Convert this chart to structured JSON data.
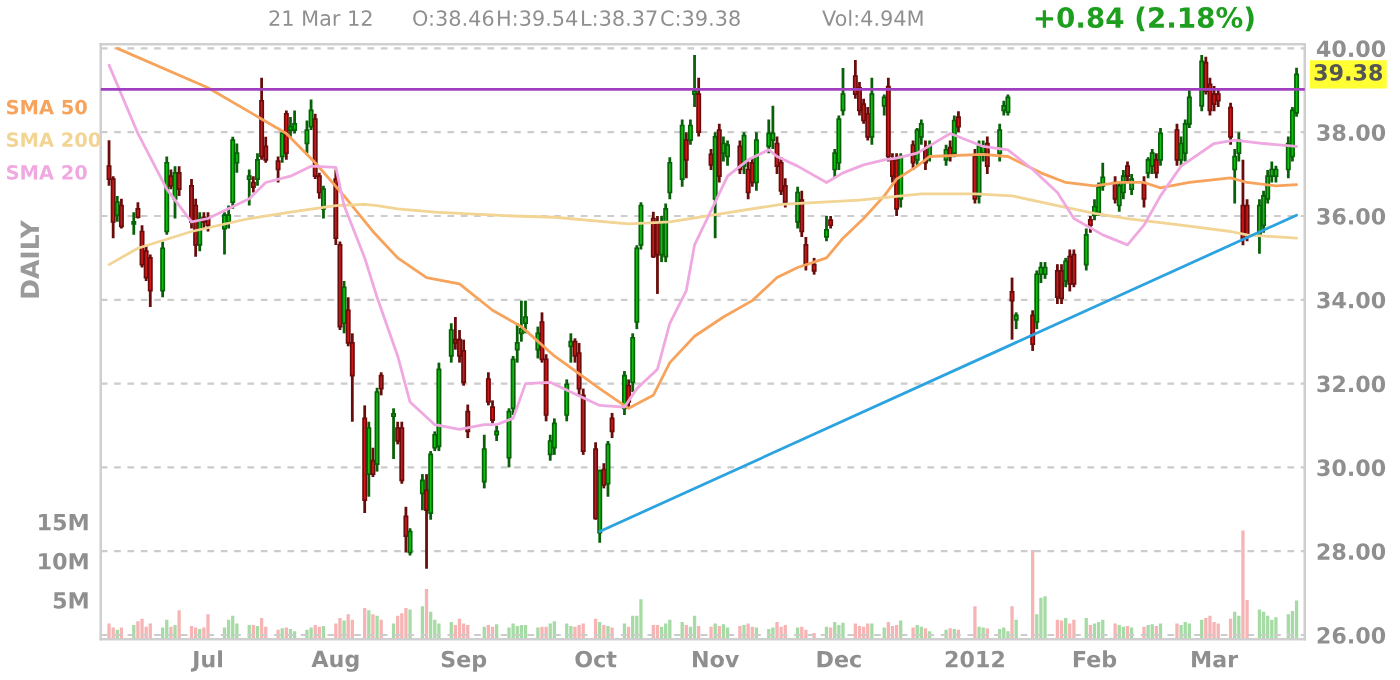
{
  "chart_data": {
    "type": "candlestick",
    "x": [
      "2011-06-07",
      "2011-06-08",
      "2011-06-09",
      "2011-06-10",
      "2011-06-13",
      "2011-06-14",
      "2011-06-15",
      "2011-06-16",
      "2011-06-17",
      "2011-06-20",
      "2011-06-21",
      "2011-06-22",
      "2011-06-23",
      "2011-06-24",
      "2011-06-27",
      "2011-06-28",
      "2011-06-29",
      "2011-06-30",
      "2011-07-01",
      "2011-07-05",
      "2011-07-06",
      "2011-07-07",
      "2011-07-08",
      "2011-07-11",
      "2011-07-12",
      "2011-07-13",
      "2011-07-14",
      "2011-07-15",
      "2011-07-18",
      "2011-07-19",
      "2011-07-20",
      "2011-07-21",
      "2011-07-22",
      "2011-07-25",
      "2011-07-26",
      "2011-07-27",
      "2011-07-28",
      "2011-07-29",
      "2011-08-01",
      "2011-08-02",
      "2011-08-03",
      "2011-08-04",
      "2011-08-05",
      "2011-08-08",
      "2011-08-09",
      "2011-08-10",
      "2011-08-11",
      "2011-08-12",
      "2011-08-15",
      "2011-08-16",
      "2011-08-17",
      "2011-08-18",
      "2011-08-19",
      "2011-08-22",
      "2011-08-23",
      "2011-08-24",
      "2011-08-25",
      "2011-08-26",
      "2011-08-29",
      "2011-08-30",
      "2011-08-31",
      "2011-09-01",
      "2011-09-02",
      "2011-09-06",
      "2011-09-07",
      "2011-09-08",
      "2011-09-09",
      "2011-09-12",
      "2011-09-13",
      "2011-09-14",
      "2011-09-15",
      "2011-09-16",
      "2011-09-19",
      "2011-09-20",
      "2011-09-21",
      "2011-09-22",
      "2011-09-23",
      "2011-09-26",
      "2011-09-27",
      "2011-09-28",
      "2011-09-29",
      "2011-09-30",
      "2011-10-03",
      "2011-10-04",
      "2011-10-05",
      "2011-10-06",
      "2011-10-07",
      "2011-10-10",
      "2011-10-11",
      "2011-10-12",
      "2011-10-13",
      "2011-10-14",
      "2011-10-17",
      "2011-10-18",
      "2011-10-19",
      "2011-10-20",
      "2011-10-21",
      "2011-10-24",
      "2011-10-25",
      "2011-10-26",
      "2011-10-27",
      "2011-10-28",
      "2011-10-31",
      "2011-11-01",
      "2011-11-02",
      "2011-11-03",
      "2011-11-04",
      "2011-11-07",
      "2011-11-08",
      "2011-11-09",
      "2011-11-10",
      "2011-11-11",
      "2011-11-14",
      "2011-11-15",
      "2011-11-16",
      "2011-11-17",
      "2011-11-18",
      "2011-11-21",
      "2011-11-22",
      "2011-11-23",
      "2011-11-25",
      "2011-11-28",
      "2011-11-29",
      "2011-11-30",
      "2011-12-01",
      "2011-12-02",
      "2011-12-05",
      "2011-12-06",
      "2011-12-07",
      "2011-12-08",
      "2011-12-09",
      "2011-12-12",
      "2011-12-13",
      "2011-12-14",
      "2011-12-15",
      "2011-12-16",
      "2011-12-19",
      "2011-12-20",
      "2011-12-21",
      "2011-12-22",
      "2011-12-23",
      "2011-12-27",
      "2011-12-28",
      "2011-12-29",
      "2011-12-30",
      "2012-01-03",
      "2012-01-04",
      "2012-01-05",
      "2012-01-06",
      "2012-01-09",
      "2012-01-10",
      "2012-01-11",
      "2012-01-12",
      "2012-01-13",
      "2012-01-17",
      "2012-01-18",
      "2012-01-19",
      "2012-01-20",
      "2012-01-23",
      "2012-01-24",
      "2012-01-25",
      "2012-01-26",
      "2012-01-27",
      "2012-01-30",
      "2012-01-31",
      "2012-02-01",
      "2012-02-02",
      "2012-02-03",
      "2012-02-06",
      "2012-02-07",
      "2012-02-08",
      "2012-02-09",
      "2012-02-10",
      "2012-02-13",
      "2012-02-14",
      "2012-02-15",
      "2012-02-16",
      "2012-02-17",
      "2012-02-21",
      "2012-02-22",
      "2012-02-23",
      "2012-02-24",
      "2012-02-27",
      "2012-02-28",
      "2012-02-29",
      "2012-03-01",
      "2012-03-02",
      "2012-03-05",
      "2012-03-06",
      "2012-03-07",
      "2012-03-08",
      "2012-03-09",
      "2012-03-12",
      "2012-03-13",
      "2012-03-14",
      "2012-03-15",
      "2012-03-16",
      "2012-03-19",
      "2012-03-20",
      "2012-03-21"
    ],
    "ohlc": [
      [
        37.19,
        37.81,
        36.72,
        36.88
      ],
      [
        36.88,
        36.95,
        35.47,
        35.86
      ],
      [
        36.02,
        36.48,
        35.86,
        36.33
      ],
      [
        36.25,
        36.41,
        35.7,
        35.75
      ],
      [
        35.81,
        36.09,
        35.55,
        35.86
      ],
      [
        36.17,
        36.33,
        35.94,
        35.97
      ],
      [
        35.63,
        35.78,
        34.77,
        34.84
      ],
      [
        35.16,
        35.3,
        34.45,
        34.53
      ],
      [
        35.0,
        35.08,
        33.83,
        34.22
      ],
      [
        34.22,
        35.39,
        34.06,
        35.23
      ],
      [
        35.63,
        37.42,
        35.55,
        37.27
      ],
      [
        36.95,
        37.11,
        36.64,
        36.72
      ],
      [
        36.41,
        37.19,
        35.94,
        37.03
      ],
      [
        37.03,
        37.19,
        36.48,
        36.64
      ],
      [
        36.72,
        36.88,
        35.7,
        35.86
      ],
      [
        36.25,
        36.41,
        35.03,
        35.31
      ],
      [
        35.31,
        36.09,
        35.16,
        35.94
      ],
      [
        35.97,
        36.09,
        35.7,
        35.86
      ],
      [
        35.94,
        36.09,
        35.63,
        35.78
      ],
      [
        35.7,
        36.09,
        35.08,
        36.02
      ],
      [
        35.86,
        36.25,
        35.7,
        36.02
      ],
      [
        36.33,
        37.89,
        36.17,
        37.81
      ],
      [
        37.27,
        37.73,
        37.03,
        37.5
      ],
      [
        36.88,
        37.11,
        36.25,
        36.95
      ],
      [
        36.8,
        36.95,
        36.56,
        36.69
      ],
      [
        36.88,
        37.5,
        36.72,
        37.34
      ],
      [
        38.75,
        39.3,
        37.34,
        37.42
      ],
      [
        37.66,
        37.89,
        37.27,
        37.34
      ],
      [
        37.31,
        37.42,
        36.8,
        37.11
      ],
      [
        37.42,
        38.05,
        37.27,
        37.97
      ],
      [
        38.44,
        38.52,
        37.34,
        37.5
      ],
      [
        38.05,
        38.36,
        37.89,
        38.13
      ],
      [
        38.05,
        38.52,
        37.97,
        38.2
      ],
      [
        37.73,
        38.28,
        37.5,
        38.05
      ],
      [
        38.13,
        38.78,
        38.05,
        38.52
      ],
      [
        38.31,
        38.44,
        36.88,
        36.95
      ],
      [
        36.95,
        37.03,
        36.41,
        36.56
      ],
      [
        36.17,
        36.72,
        35.94,
        36.64
      ],
      [
        36.88,
        37.11,
        35.31,
        35.47
      ],
      [
        35.31,
        35.39,
        33.28,
        33.36
      ],
      [
        33.44,
        34.45,
        33.2,
        34.3
      ],
      [
        33.75,
        34.06,
        32.89,
        32.97
      ],
      [
        32.97,
        33.2,
        31.09,
        32.19
      ],
      [
        31.17,
        31.48,
        28.91,
        29.22
      ],
      [
        29.84,
        31.09,
        29.3,
        30.94
      ],
      [
        30.16,
        30.47,
        29.77,
        29.84
      ],
      [
        30.08,
        31.9,
        29.9,
        31.8
      ],
      [
        32.19,
        32.27,
        31.72,
        31.88
      ],
      [
        31.22,
        31.41,
        30.2,
        31.28
      ],
      [
        30.94,
        31.09,
        30.55,
        30.63
      ],
      [
        30.94,
        31.09,
        29.61,
        29.69
      ],
      [
        28.83,
        29.06,
        27.97,
        28.36
      ],
      [
        27.97,
        28.55,
        27.9,
        28.47
      ],
      [
        29.38,
        29.84,
        28.98,
        29.69
      ],
      [
        29.45,
        29.84,
        27.58,
        28.98
      ],
      [
        28.91,
        30.39,
        28.75,
        30.31
      ],
      [
        30.47,
        30.86,
        30.39,
        30.78
      ],
      [
        30.5,
        32.5,
        30.39,
        32.34
      ],
      [
        32.66,
        33.44,
        32.5,
        33.28
      ],
      [
        33.05,
        33.59,
        32.81,
        32.97
      ],
      [
        33.05,
        33.28,
        32.5,
        32.66
      ],
      [
        32.78,
        33.05,
        31.95,
        32.03
      ],
      [
        31.33,
        31.5,
        30.7,
        30.86
      ],
      [
        29.66,
        30.78,
        29.5,
        30.44
      ],
      [
        32.11,
        32.27,
        31.48,
        31.56
      ],
      [
        31.44,
        31.6,
        31.05,
        31.13
      ],
      [
        30.78,
        31.0,
        30.63,
        30.86
      ],
      [
        30.23,
        31.41,
        30.0,
        31.33
      ],
      [
        31.41,
        32.66,
        31.25,
        32.58
      ],
      [
        32.81,
        33.44,
        32.5,
        32.97
      ],
      [
        33.2,
        33.98,
        33.0,
        33.31
      ],
      [
        33.44,
        33.98,
        33.2,
        33.59
      ],
      [
        32.81,
        33.36,
        32.6,
        33.2
      ],
      [
        33.47,
        33.7,
        32.5,
        32.58
      ],
      [
        32.58,
        32.7,
        31.1,
        31.25
      ],
      [
        30.31,
        30.78,
        30.16,
        30.63
      ],
      [
        30.47,
        31.17,
        30.3,
        31.05
      ],
      [
        31.25,
        32.1,
        31.1,
        31.98
      ],
      [
        32.89,
        33.2,
        32.5,
        33.0
      ],
      [
        33.0,
        33.08,
        32.5,
        32.66
      ],
      [
        32.73,
        32.97,
        31.72,
        31.88
      ],
      [
        31.72,
        31.88,
        30.3,
        30.39
      ],
      [
        30.44,
        30.6,
        28.75,
        28.78
      ],
      [
        28.44,
        29.95,
        28.2,
        29.92
      ],
      [
        29.95,
        30.1,
        29.5,
        29.58
      ],
      [
        29.61,
        30.63,
        29.3,
        30.55
      ],
      [
        31.17,
        31.3,
        30.7,
        30.86
      ],
      [
        31.41,
        32.3,
        31.25,
        32.19
      ],
      [
        31.95,
        32.1,
        31.4,
        31.56
      ],
      [
        32.03,
        33.2,
        31.8,
        33.09
      ],
      [
        33.47,
        35.3,
        33.3,
        35.23
      ],
      [
        35.31,
        36.33,
        35.2,
        36.25
      ],
      [
        35.94,
        36.1,
        35.0,
        35.03
      ],
      [
        35.86,
        36.0,
        34.14,
        35.08
      ],
      [
        35.08,
        36.0,
        34.9,
        35.86
      ],
      [
        35.03,
        36.3,
        34.9,
        36.17
      ],
      [
        36.56,
        37.4,
        36.4,
        37.27
      ],
      [
        36.88,
        38.3,
        36.7,
        38.16
      ],
      [
        37.81,
        38.0,
        36.9,
        37.34
      ],
      [
        37.81,
        38.3,
        37.7,
        38.16
      ],
      [
        38.91,
        39.84,
        38.6,
        38.98
      ],
      [
        38.91,
        39.3,
        37.9,
        38.0
      ],
      [
        37.47,
        37.6,
        37.1,
        37.22
      ],
      [
        36.41,
        38.0,
        35.47,
        37.89
      ],
      [
        38.05,
        38.2,
        36.8,
        36.95
      ],
      [
        37.5,
        37.9,
        37.3,
        37.73
      ],
      [
        37.42,
        37.8,
        37.2,
        37.69
      ],
      [
        37.66,
        37.8,
        37.0,
        37.11
      ],
      [
        37.19,
        38.0,
        37.0,
        37.92
      ],
      [
        37.11,
        37.3,
        36.4,
        36.56
      ],
      [
        37.27,
        37.4,
        36.7,
        36.8
      ],
      [
        36.8,
        38.0,
        36.6,
        37.81
      ],
      [
        37.66,
        38.3,
        37.5,
        37.97
      ],
      [
        37.81,
        38.63,
        37.6,
        37.97
      ],
      [
        37.73,
        37.9,
        37.0,
        37.19
      ],
      [
        37.27,
        37.4,
        36.5,
        36.6
      ],
      [
        36.72,
        36.9,
        36.2,
        36.33
      ],
      [
        35.86,
        36.7,
        35.7,
        36.56
      ],
      [
        36.38,
        36.6,
        35.5,
        35.63
      ],
      [
        35.31,
        35.5,
        34.7,
        34.84
      ],
      [
        34.84,
        35.0,
        34.6,
        34.69
      ],
      [
        35.5,
        36.0,
        35.4,
        35.67
      ],
      [
        35.9,
        36.0,
        35.7,
        35.78
      ],
      [
        37.11,
        37.6,
        36.9,
        37.5
      ],
      [
        37.27,
        38.4,
        37.1,
        38.31
      ],
      [
        38.52,
        39.53,
        38.4,
        38.91
      ],
      [
        39.34,
        39.72,
        38.8,
        38.91
      ],
      [
        39.06,
        39.2,
        38.4,
        38.52
      ],
      [
        38.67,
        38.8,
        38.2,
        38.28
      ],
      [
        38.44,
        38.6,
        37.8,
        37.89
      ],
      [
        37.89,
        39.3,
        37.7,
        38.91
      ],
      [
        38.63,
        38.9,
        38.4,
        38.83
      ],
      [
        39.09,
        39.3,
        37.3,
        37.42
      ],
      [
        37.34,
        37.5,
        36.8,
        36.95
      ],
      [
        37.34,
        37.5,
        36.0,
        36.17
      ],
      [
        36.41,
        37.5,
        36.2,
        37.42
      ],
      [
        37.69,
        37.8,
        37.1,
        37.27
      ],
      [
        37.34,
        38.1,
        37.2,
        38.05
      ],
      [
        37.89,
        38.3,
        37.7,
        38.2
      ],
      [
        37.58,
        37.8,
        37.1,
        37.27
      ],
      [
        37.42,
        37.8,
        37.3,
        37.66
      ],
      [
        37.34,
        37.7,
        37.2,
        37.58
      ],
      [
        37.63,
        37.8,
        37.3,
        37.42
      ],
      [
        37.5,
        38.4,
        37.4,
        38.28
      ],
      [
        38.36,
        38.5,
        38.0,
        38.13
      ],
      [
        37.42,
        37.6,
        36.3,
        36.41
      ],
      [
        36.48,
        37.8,
        36.3,
        37.66
      ],
      [
        37.5,
        37.8,
        37.3,
        37.66
      ],
      [
        37.73,
        37.9,
        37.0,
        37.19
      ],
      [
        37.5,
        38.2,
        37.3,
        38.05
      ],
      [
        38.52,
        38.75,
        38.4,
        38.63
      ],
      [
        38.48,
        38.9,
        38.4,
        38.83
      ],
      [
        34.19,
        34.53,
        33.05,
        33.98
      ],
      [
        33.52,
        33.7,
        33.3,
        33.63
      ],
      [
        33.63,
        33.75,
        32.78,
        32.94
      ],
      [
        33.47,
        34.7,
        33.3,
        34.61
      ],
      [
        34.61,
        34.9,
        34.4,
        34.77
      ],
      [
        34.61,
        34.9,
        34.5,
        34.77
      ],
      [
        34.69,
        34.85,
        33.9,
        34.06
      ],
      [
        34.69,
        34.85,
        33.9,
        34.03
      ],
      [
        34.45,
        35.0,
        34.3,
        34.92
      ],
      [
        35.03,
        35.2,
        34.2,
        34.38
      ],
      [
        35.08,
        35.2,
        34.3,
        34.38
      ],
      [
        34.84,
        35.7,
        34.7,
        35.55
      ],
      [
        35.91,
        36.0,
        35.6,
        35.78
      ],
      [
        36.02,
        36.4,
        35.9,
        36.22
      ],
      [
        36.09,
        36.8,
        36.0,
        36.69
      ],
      [
        36.72,
        37.27,
        36.6,
        36.92
      ],
      [
        36.8,
        36.95,
        36.3,
        36.41
      ],
      [
        36.25,
        36.8,
        36.1,
        36.72
      ],
      [
        36.56,
        37.1,
        36.4,
        36.95
      ],
      [
        37.19,
        37.3,
        36.8,
        36.95
      ],
      [
        36.64,
        37.0,
        36.5,
        36.88
      ],
      [
        36.8,
        36.95,
        36.2,
        36.41
      ],
      [
        37.03,
        37.4,
        36.9,
        37.34
      ],
      [
        37.19,
        37.6,
        37.0,
        37.5
      ],
      [
        37.34,
        37.5,
        36.9,
        37.03
      ],
      [
        37.34,
        38.1,
        37.2,
        37.97
      ],
      [
        38.05,
        38.2,
        37.2,
        37.34
      ],
      [
        37.34,
        37.9,
        37.2,
        37.73
      ],
      [
        37.5,
        38.3,
        37.3,
        38.2
      ],
      [
        38.2,
        39.0,
        38.1,
        38.83
      ],
      [
        38.63,
        39.84,
        38.5,
        39.69
      ],
      [
        39.66,
        39.8,
        38.9,
        38.98
      ],
      [
        39.14,
        39.3,
        38.4,
        38.52
      ],
      [
        38.91,
        39.1,
        38.5,
        38.67
      ],
      [
        38.91,
        39.0,
        38.6,
        38.75
      ],
      [
        38.59,
        38.7,
        37.7,
        37.89
      ],
      [
        37.11,
        37.6,
        36.3,
        37.42
      ],
      [
        37.5,
        38.0,
        37.3,
        37.81
      ],
      [
        36.25,
        37.34,
        35.3,
        35.47
      ],
      [
        36.25,
        36.4,
        35.4,
        35.55
      ],
      [
        35.55,
        36.4,
        35.1,
        36.25
      ],
      [
        35.78,
        36.6,
        35.6,
        36.48
      ],
      [
        36.41,
        37.1,
        36.3,
        36.95
      ],
      [
        36.95,
        37.3,
        36.8,
        37.11
      ],
      [
        36.95,
        37.2,
        36.8,
        37.11
      ],
      [
        37.11,
        37.9,
        36.9,
        37.73
      ],
      [
        37.42,
        38.6,
        37.3,
        38.52
      ],
      [
        38.46,
        39.54,
        38.37,
        39.38
      ]
    ],
    "colors": [
      "#d01818",
      "#d01818",
      "#10c010",
      "#d01818",
      "#10c010",
      "#d01818",
      "#d01818",
      "#d01818",
      "#d01818",
      "#10c010",
      "#10c010",
      "#d01818",
      "#10c010",
      "#d01818",
      "#d01818",
      "#d01818",
      "#10c010",
      "#d01818",
      "#d01818",
      "#10c010",
      "#10c010",
      "#10c010",
      "#10c010",
      "#10c010",
      "#d01818",
      "#10c010",
      "#d01818",
      "#d01818",
      "#d01818",
      "#10c010",
      "#d01818",
      "#10c010",
      "#10c010",
      "#10c010",
      "#10c010",
      "#d01818",
      "#d01818",
      "#10c010",
      "#d01818",
      "#d01818",
      "#10c010",
      "#d01818",
      "#d01818",
      "#d01818",
      "#10c010",
      "#d01818",
      "#10c010",
      "#d01818",
      "#10c010",
      "#d01818",
      "#d01818",
      "#d01818",
      "#10c010",
      "#10c010",
      "#d01818",
      "#10c010",
      "#10c010",
      "#10c010",
      "#10c010",
      "#d01818",
      "#d01818",
      "#d01818",
      "#d01818",
      "#10c010",
      "#d01818",
      "#d01818",
      "#10c010",
      "#10c010",
      "#10c010",
      "#10c010",
      "#10c010",
      "#10c010",
      "#10c010",
      "#d01818",
      "#d01818",
      "#10c010",
      "#10c010",
      "#10c010",
      "#10c010",
      "#d01818",
      "#d01818",
      "#d01818",
      "#d01818",
      "#10c010",
      "#d01818",
      "#10c010",
      "#d01818",
      "#10c010",
      "#d01818",
      "#10c010",
      "#10c010",
      "#10c010",
      "#d01818",
      "#d01818",
      "#10c010",
      "#10c010",
      "#10c010",
      "#10c010",
      "#d01818",
      "#10c010",
      "#10c010",
      "#d01818",
      "#d01818",
      "#10c010",
      "#d01818",
      "#10c010",
      "#10c010",
      "#d01818",
      "#10c010",
      "#d01818",
      "#d01818",
      "#10c010",
      "#10c010",
      "#10c010",
      "#d01818",
      "#d01818",
      "#d01818",
      "#10c010",
      "#d01818",
      "#d01818",
      "#d01818",
      "#10c010",
      "#d01818",
      "#10c010",
      "#10c010",
      "#10c010",
      "#d01818",
      "#d01818",
      "#d01818",
      "#d01818",
      "#10c010",
      "#10c010",
      "#d01818",
      "#d01818",
      "#d01818",
      "#10c010",
      "#d01818",
      "#10c010",
      "#10c010",
      "#d01818",
      "#10c010",
      "#10c010",
      "#d01818",
      "#10c010",
      "#d01818",
      "#d01818",
      "#10c010",
      "#10c010",
      "#d01818",
      "#10c010",
      "#10c010",
      "#10c010",
      "#d01818",
      "#10c010",
      "#d01818",
      "#10c010",
      "#10c010",
      "#10c010",
      "#d01818",
      "#d01818",
      "#10c010",
      "#d01818",
      "#d01818",
      "#10c010",
      "#d01818",
      "#10c010",
      "#10c010",
      "#10c010",
      "#d01818",
      "#10c010",
      "#10c010",
      "#d01818",
      "#10c010",
      "#d01818",
      "#10c010",
      "#10c010",
      "#d01818",
      "#10c010",
      "#d01818",
      "#10c010",
      "#10c010",
      "#10c010",
      "#10c010",
      "#d01818",
      "#d01818",
      "#d01818",
      "#d01818",
      "#d01818",
      "#10c010",
      "#10c010",
      "#d01818",
      "#d01818",
      "#10c010",
      "#10c010",
      "#10c010",
      "#10c010",
      "#10c010",
      "#10c010",
      "#10c010",
      "#10c010"
    ],
    "series": [
      {
        "type": "bar",
        "axis": "y2",
        "values": [
          2.0,
          1.5,
          1.2,
          1.5,
          1.8,
          2.3,
          2.6,
          1.6,
          2.0,
          1.5,
          2.5,
          1.6,
          1.8,
          3.7,
          1.7,
          1.5,
          1.3,
          1.5,
          3.2,
          1.5,
          2.5,
          3.0,
          2.0,
          1.8,
          1.8,
          1.7,
          2.7,
          1.6,
          1.2,
          1.4,
          1.5,
          1.3,
          1.0,
          1.2,
          1.5,
          1.8,
          1.6,
          1.7,
          2.0,
          2.7,
          2.4,
          3.2,
          2.5,
          4.0,
          3.7,
          3.2,
          3.0,
          2.5,
          2.0,
          3.0,
          3.3,
          4.0,
          3.8,
          4.2,
          6.4,
          3.5,
          2.5,
          2.0,
          2.2,
          1.8,
          2.6,
          2.0,
          1.8,
          1.6,
          1.8,
          1.6,
          1.9,
          1.5,
          2.0,
          1.7,
          1.8,
          1.8,
          1.5,
          1.6,
          1.6,
          2.0,
          2.3,
          2.0,
          1.7,
          1.6,
          1.8,
          2.0,
          2.6,
          2.2,
          1.8,
          1.7,
          1.5,
          2.0,
          1.6,
          3.0,
          3.0,
          5.1,
          1.8,
          1.8,
          1.6,
          2.0,
          2.5,
          2.2,
          1.8,
          1.6,
          3.0,
          1.7,
          1.6,
          2.0,
          1.7,
          1.9,
          1.5,
          1.7,
          1.8,
          2.0,
          1.6,
          1.5,
          1.3,
          1.5,
          2.2,
          1.6,
          1.8,
          1.5,
          1.6,
          1.2,
          0.8,
          1.6,
          1.5,
          2.2,
          1.8,
          2.1,
          2.0,
          1.7,
          1.6,
          2.0,
          2.0,
          1.5,
          2.2,
          1.7,
          1.8,
          2.4,
          1.5,
          1.8,
          1.6,
          1.4,
          1.0,
          1.2,
          1.4,
          1.3,
          1.2,
          4.2,
          1.6,
          1.5,
          1.4,
          1.3,
          1.5,
          1.0,
          4.2,
          2.5,
          11.4,
          3.2,
          5.3,
          5.5,
          2.5,
          2.4,
          2.7,
          2.0,
          2.5,
          2.7,
          1.8,
          2.0,
          2.2,
          2.5,
          2.0,
          1.8,
          1.6,
          1.7,
          1.5,
          1.6,
          1.8,
          1.9,
          1.7,
          2.0,
          2.0,
          1.8,
          2.2,
          2.0,
          2.5,
          2.7,
          3.0,
          2.2,
          2.0,
          2.6,
          3.5,
          3.0,
          13.9,
          5.0,
          3.8,
          3.5,
          3.0,
          2.5,
          2.8,
          3.2,
          3.6,
          4.94
        ],
        "colors": [
          "#f7b4b4",
          "#f7b4b4",
          "#a6dba6",
          "#f7b4b4",
          "#a6dba6",
          "#f7b4b4",
          "#f7b4b4",
          "#f7b4b4",
          "#f7b4b4",
          "#a6dba6",
          "#a6dba6",
          "#f7b4b4",
          "#a6dba6",
          "#f7b4b4",
          "#f7b4b4",
          "#f7b4b4",
          "#a6dba6",
          "#f7b4b4",
          "#f7b4b4",
          "#a6dba6",
          "#a6dba6",
          "#a6dba6",
          "#a6dba6",
          "#a6dba6",
          "#f7b4b4",
          "#a6dba6",
          "#f7b4b4",
          "#f7b4b4",
          "#f7b4b4",
          "#a6dba6",
          "#f7b4b4",
          "#a6dba6",
          "#a6dba6",
          "#a6dba6",
          "#a6dba6",
          "#f7b4b4",
          "#f7b4b4",
          "#a6dba6",
          "#f7b4b4",
          "#f7b4b4",
          "#a6dba6",
          "#f7b4b4",
          "#f7b4b4",
          "#f7b4b4",
          "#a6dba6",
          "#f7b4b4",
          "#a6dba6",
          "#f7b4b4",
          "#a6dba6",
          "#f7b4b4",
          "#f7b4b4",
          "#f7b4b4",
          "#a6dba6",
          "#a6dba6",
          "#f7b4b4",
          "#a6dba6",
          "#a6dba6",
          "#a6dba6",
          "#a6dba6",
          "#f7b4b4",
          "#f7b4b4",
          "#f7b4b4",
          "#f7b4b4",
          "#a6dba6",
          "#f7b4b4",
          "#f7b4b4",
          "#a6dba6",
          "#a6dba6",
          "#a6dba6",
          "#a6dba6",
          "#a6dba6",
          "#a6dba6",
          "#a6dba6",
          "#f7b4b4",
          "#f7b4b4",
          "#a6dba6",
          "#a6dba6",
          "#a6dba6",
          "#a6dba6",
          "#f7b4b4",
          "#f7b4b4",
          "#f7b4b4",
          "#f7b4b4",
          "#a6dba6",
          "#f7b4b4",
          "#a6dba6",
          "#f7b4b4",
          "#a6dba6",
          "#f7b4b4",
          "#a6dba6",
          "#a6dba6",
          "#a6dba6",
          "#f7b4b4",
          "#f7b4b4",
          "#a6dba6",
          "#a6dba6",
          "#a6dba6",
          "#a6dba6",
          "#f7b4b4",
          "#a6dba6",
          "#a6dba6",
          "#f7b4b4",
          "#f7b4b4",
          "#a6dba6",
          "#f7b4b4",
          "#a6dba6",
          "#a6dba6",
          "#f7b4b4",
          "#a6dba6",
          "#f7b4b4",
          "#f7b4b4",
          "#a6dba6",
          "#a6dba6",
          "#a6dba6",
          "#f7b4b4",
          "#f7b4b4",
          "#f7b4b4",
          "#a6dba6",
          "#f7b4b4",
          "#f7b4b4",
          "#f7b4b4",
          "#a6dba6",
          "#f7b4b4",
          "#a6dba6",
          "#a6dba6",
          "#a6dba6",
          "#f7b4b4",
          "#f7b4b4",
          "#f7b4b4",
          "#f7b4b4",
          "#a6dba6",
          "#a6dba6",
          "#f7b4b4",
          "#f7b4b4",
          "#f7b4b4",
          "#a6dba6",
          "#f7b4b4",
          "#a6dba6",
          "#a6dba6",
          "#f7b4b4",
          "#a6dba6",
          "#a6dba6",
          "#f7b4b4",
          "#a6dba6",
          "#f7b4b4",
          "#f7b4b4",
          "#a6dba6",
          "#a6dba6",
          "#f7b4b4",
          "#a6dba6",
          "#a6dba6",
          "#a6dba6",
          "#f7b4b4",
          "#a6dba6",
          "#f7b4b4",
          "#a6dba6",
          "#a6dba6",
          "#a6dba6",
          "#f7b4b4",
          "#f7b4b4",
          "#a6dba6",
          "#f7b4b4",
          "#f7b4b4",
          "#a6dba6",
          "#f7b4b4",
          "#a6dba6",
          "#a6dba6",
          "#a6dba6",
          "#f7b4b4",
          "#a6dba6",
          "#a6dba6",
          "#f7b4b4",
          "#a6dba6",
          "#f7b4b4",
          "#a6dba6",
          "#a6dba6",
          "#f7b4b4",
          "#a6dba6",
          "#f7b4b4",
          "#a6dba6",
          "#a6dba6",
          "#a6dba6",
          "#a6dba6",
          "#f7b4b4",
          "#f7b4b4",
          "#f7b4b4",
          "#f7b4b4",
          "#f7b4b4",
          "#a6dba6",
          "#a6dba6",
          "#f7b4b4",
          "#f7b4b4",
          "#a6dba6",
          "#a6dba6",
          "#a6dba6",
          "#a6dba6",
          "#a6dba6",
          "#a6dba6",
          "#a6dba6",
          "#a6dba6"
        ]
      },
      {
        "type": "line",
        "name": "SMA 50",
        "color": "#f7a35c",
        "x": [
          "2011-06-09",
          "2011-07-01",
          "2011-07-20",
          "2011-07-27",
          "2011-08-03",
          "2011-08-10",
          "2011-08-16",
          "2011-08-23",
          "2011-08-31",
          "2011-09-08",
          "2011-09-15",
          "2011-09-23",
          "2011-10-04",
          "2011-10-11",
          "2011-10-17",
          "2011-10-21",
          "2011-10-27",
          "2011-11-03",
          "2011-11-10",
          "2011-11-16",
          "2011-11-21",
          "2011-11-28",
          "2011-12-02",
          "2011-12-07",
          "2011-12-12",
          "2011-12-15",
          "2011-12-20",
          "2011-12-23",
          "2012-01-05",
          "2012-01-11",
          "2012-01-19",
          "2012-01-25",
          "2012-02-01",
          "2012-02-07",
          "2012-02-13",
          "2012-02-17",
          "2012-02-24",
          "2012-03-05",
          "2012-03-09",
          "2012-03-16",
          "2012-03-21"
        ],
        "values": [
          40.0,
          39.06,
          37.97,
          37.27,
          36.48,
          35.63,
          35.0,
          34.53,
          34.38,
          33.75,
          33.36,
          32.66,
          31.88,
          31.41,
          31.72,
          32.5,
          33.13,
          33.59,
          33.98,
          34.53,
          34.77,
          35.0,
          35.47,
          35.94,
          36.48,
          36.88,
          37.19,
          37.42,
          37.47,
          37.42,
          37.03,
          36.8,
          36.72,
          36.8,
          36.8,
          36.67,
          36.8,
          36.91,
          36.8,
          36.72,
          36.75
        ]
      },
      {
        "type": "line",
        "name": "SMA 200",
        "color": "#f2d494",
        "x": [
          "2011-06-07",
          "2011-06-14",
          "2011-06-27",
          "2011-07-11",
          "2011-07-21",
          "2011-08-01",
          "2011-08-08",
          "2011-08-11",
          "2011-08-16",
          "2011-08-25",
          "2011-09-13",
          "2011-09-23",
          "2011-10-11",
          "2011-10-21",
          "2011-11-03",
          "2011-11-17",
          "2011-12-06",
          "2011-12-21",
          "2012-01-03",
          "2012-01-12",
          "2012-01-23",
          "2012-02-01",
          "2012-02-09",
          "2012-02-22",
          "2012-03-05",
          "2012-03-09",
          "2012-03-21"
        ],
        "values": [
          34.84,
          35.23,
          35.63,
          35.94,
          36.09,
          36.25,
          36.28,
          36.25,
          36.17,
          36.09,
          36.0,
          35.97,
          35.81,
          35.86,
          36.06,
          36.28,
          36.38,
          36.53,
          36.53,
          36.48,
          36.25,
          36.06,
          35.94,
          35.78,
          35.63,
          35.55,
          35.47
        ]
      },
      {
        "type": "line",
        "name": "SMA 20",
        "color": "#f0a8e0",
        "x": [
          "2011-06-07",
          "2011-06-14",
          "2011-06-21",
          "2011-06-27",
          "2011-07-01",
          "2011-07-11",
          "2011-07-15",
          "2011-07-21",
          "2011-07-26",
          "2011-08-01",
          "2011-08-03",
          "2011-08-08",
          "2011-08-11",
          "2011-08-16",
          "2011-08-19",
          "2011-08-25",
          "2011-08-31",
          "2011-09-06",
          "2011-09-09",
          "2011-09-13",
          "2011-09-16",
          "2011-09-22",
          "2011-09-27",
          "2011-10-04",
          "2011-10-10",
          "2011-10-13",
          "2011-10-18",
          "2011-10-21",
          "2011-10-25",
          "2011-10-27",
          "2011-11-01",
          "2011-11-04",
          "2011-11-09",
          "2011-11-14",
          "2011-11-16",
          "2011-11-21",
          "2011-11-28",
          "2011-12-02",
          "2011-12-07",
          "2011-12-12",
          "2011-12-15",
          "2011-12-20",
          "2011-12-28",
          "2012-01-05",
          "2012-01-11",
          "2012-01-17",
          "2012-01-23",
          "2012-01-27",
          "2012-02-03",
          "2012-02-09",
          "2012-02-13",
          "2012-02-17",
          "2012-02-22",
          "2012-03-01",
          "2012-03-06",
          "2012-03-13",
          "2012-03-21"
        ],
        "values": [
          39.6,
          37.97,
          36.64,
          35.86,
          35.94,
          36.41,
          36.8,
          36.95,
          37.19,
          37.16,
          36.25,
          35.0,
          34.06,
          32.66,
          31.56,
          31.02,
          30.91,
          31.02,
          31.02,
          31.17,
          32.0,
          32.03,
          31.8,
          31.48,
          31.44,
          31.88,
          32.34,
          33.44,
          34.22,
          35.31,
          36.33,
          36.95,
          37.34,
          37.58,
          37.42,
          37.19,
          36.8,
          37.03,
          37.22,
          37.34,
          37.38,
          37.5,
          37.97,
          37.66,
          37.58,
          37.11,
          36.56,
          35.94,
          35.55,
          35.31,
          35.78,
          36.48,
          37.19,
          37.73,
          37.81,
          37.73,
          37.66
        ]
      },
      {
        "type": "line",
        "color": "#2aa3e0",
        "x": [
          "2011-10-04",
          "2012-03-21"
        ],
        "values": [
          28.47,
          36.02
        ]
      }
    ],
    "xlim": [
      "2011-06-05",
      "2012-03-23"
    ],
    "xticks": [
      {
        "value": "2011-07-01",
        "label": "Jul"
      },
      {
        "value": "2011-08-01",
        "label": "Aug"
      },
      {
        "value": "2011-09-01",
        "label": "Sep"
      },
      {
        "value": "2011-10-03",
        "label": "Oct"
      },
      {
        "value": "2011-11-01",
        "label": "Nov"
      },
      {
        "value": "2011-12-01",
        "label": "Dec"
      },
      {
        "value": "2012-01-03",
        "label": "2012"
      },
      {
        "value": "2012-02-01",
        "label": "Feb"
      },
      {
        "value": "2012-03-01",
        "label": "Mar"
      }
    ],
    "ylim": [
      25.9,
      40.1
    ],
    "yticks": [
      {
        "value": 26,
        "label": "26.00"
      },
      {
        "value": 28,
        "label": "28.00"
      },
      {
        "value": 30,
        "label": "30.00"
      },
      {
        "value": 32,
        "label": "32.00"
      },
      {
        "value": 34,
        "label": "34.00"
      },
      {
        "value": 36,
        "label": "36.00"
      },
      {
        "value": 38,
        "label": "38.00"
      },
      {
        "value": 40,
        "label": "40.00"
      }
    ],
    "y2lim": [
      0,
      76
    ],
    "y2ticks": [
      {
        "value": 5,
        "label": "5M"
      },
      {
        "value": 10,
        "label": "10M"
      },
      {
        "value": 15,
        "label": "15M"
      }
    ],
    "ref_lines": [
      {
        "axis": "y",
        "value": 39.02,
        "color": "#a040c0"
      }
    ],
    "annotations": [
      "21 Mar 12",
      "O:38.46",
      "H:39.54",
      "L:38.37",
      "C:39.38",
      "Vol:4.94M",
      "+0.84 (2.18%)",
      "DAILY",
      {
        "text": "39.38",
        "y": 39.38
      }
    ],
    "grid": true,
    "legend": "top left"
  }
}
